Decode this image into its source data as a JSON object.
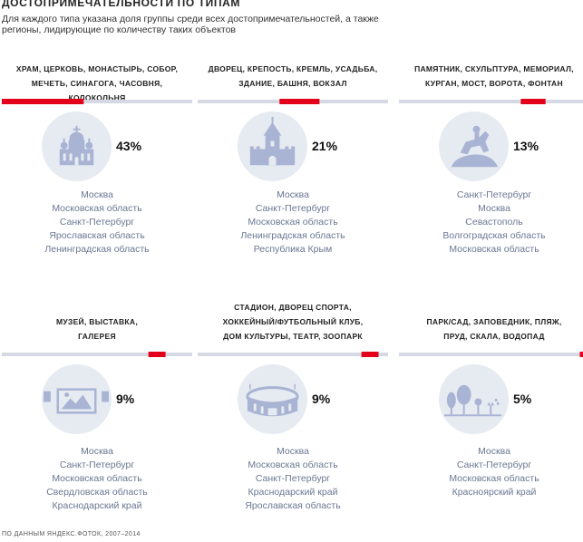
{
  "header": {
    "title": "ДОСТОПРИМЕЧАТЕЛЬНОСТИ ПО ТИПАМ",
    "subtitle": "Для каждого типа указана доля группы среди всех достопримечательностей, а также регионы, лидирующие по количеству таких объектов"
  },
  "footer": {
    "source": "ПО ДАННЫМ ЯНДЕКС.ФОТОК, 2007–2014"
  },
  "colors": {
    "bar_background": "#d5d9e3",
    "bar_highlight": "#e3001b",
    "circle": "#e6ebf2",
    "icon": "#a9b3d3",
    "region_text": "#6a7792"
  },
  "chart_data": {
    "type": "bar",
    "title": "ДОСТОПРИМЕЧАТЕЛЬНОСТИ ПО ТИПАМ",
    "unit": "%",
    "categories": [
      "ХРАМ, ЦЕРКОВЬ, МОНАСТЫРЬ, СОБОР, МЕЧЕТЬ, СИНАГОГА, ЧАСОВНЯ, КОЛОКОЛЬНЯ",
      "ДВОРЕЦ, КРЕПОСТЬ, КРЕМЛЬ, УСАДЬБА, ЗДАНИЕ, БАШНЯ, ВОКЗАЛ",
      "ПАМЯТНИК, СКУЛЬПТУРА, МЕМОРИАЛ, КУРГАН, МОСТ, ВОРОТА, ФОНТАН",
      "МУЗЕЙ, ВЫСТАВКА, ГАЛЕРЕЯ",
      "СТАДИОН, ДВОРЕЦ СПОРТА, ХОККЕЙНЫЙ/ФУТБОЛЬНЫЙ КЛУБ, ДОМ КУЛЬТУРЫ, ТЕАТР, ЗООПАРК",
      "ПАРК/САД, ЗАПОВЕДНИК, ПЛЯЖ, ПРУД, СКАЛА, ВОДОПАД"
    ],
    "values": [
      43,
      21,
      13,
      9,
      9,
      5
    ],
    "groups": [
      {
        "label_lines": [
          "ХРАМ, ЦЕРКОВЬ, МОНАСТЫРЬ, СОБОР,",
          "МЕЧЕТЬ, СИНАГОГА, ЧАСОВНЯ, КОЛОКОЛЬНЯ"
        ],
        "value": 43,
        "start": 0,
        "value_label": "43%",
        "icon": "church-icon",
        "regions": [
          "Москва",
          "Московская область",
          "Санкт-Петербург",
          "Ярославская область",
          "Ленинградская область"
        ]
      },
      {
        "label_lines": [
          "ДВОРЕЦ, КРЕПОСТЬ, КРЕМЛЬ, УСАДЬБА,",
          "ЗДАНИЕ, БАШНЯ, ВОКЗАЛ"
        ],
        "value": 21,
        "start": 43,
        "value_label": "21%",
        "icon": "fortress-icon",
        "regions": [
          "Москва",
          "Санкт-Петербург",
          "Московская область",
          "Ленинградская область",
          "Республика Крым"
        ]
      },
      {
        "label_lines": [
          "ПАМЯТНИК, СКУЛЬПТУРА, МЕМОРИАЛ,",
          "КУРГАН, МОСТ, ВОРОТА, ФОНТАН"
        ],
        "value": 13,
        "start": 64,
        "value_label": "13%",
        "icon": "monument-icon",
        "regions": [
          "Санкт-Петербург",
          "Москва",
          "Севастополь",
          "Волгоградская область",
          "Московская область"
        ]
      },
      {
        "label_lines": [
          "МУЗЕЙ, ВЫСТАВКА,",
          "ГАЛЕРЕЯ"
        ],
        "value": 9,
        "start": 77,
        "value_label": "9%",
        "icon": "museum-icon",
        "regions": [
          "Москва",
          "Санкт-Петербург",
          "Московская область",
          "Свердловская область",
          "Краснодарский край"
        ]
      },
      {
        "label_lines": [
          "СТАДИОН, ДВОРЕЦ СПОРТА,",
          "ХОККЕЙНЫЙ/ФУТБОЛЬНЫЙ КЛУБ,",
          "ДОМ КУЛЬТУРЫ, ТЕАТР, ЗООПАРК"
        ],
        "value": 9,
        "start": 86,
        "value_label": "9%",
        "icon": "stadium-icon",
        "regions": [
          "Москва",
          "Московская область",
          "Санкт-Петербург",
          "Краснодарский край",
          "Ярославская область"
        ]
      },
      {
        "label_lines": [
          "ПАРК/САД, ЗАПОВЕДНИК, ПЛЯЖ,",
          "ПРУД, СКАЛА, ВОДОПАД"
        ],
        "value": 5,
        "start": 95,
        "value_label": "5%",
        "icon": "park-icon",
        "regions": [
          "Москва",
          "Санкт-Петербург",
          "Московская область",
          "Красноярский край"
        ]
      }
    ]
  }
}
